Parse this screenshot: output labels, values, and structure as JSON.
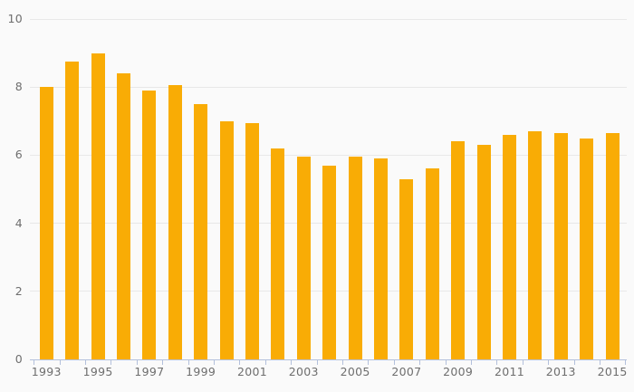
{
  "chart_data": {
    "type": "bar",
    "title": "",
    "xlabel": "",
    "ylabel": "",
    "x": [
      1993,
      1994,
      1995,
      1996,
      1997,
      1998,
      1999,
      2000,
      2001,
      2002,
      2003,
      2004,
      2005,
      2006,
      2007,
      2008,
      2009,
      2010,
      2011,
      2012,
      2013,
      2014,
      2015
    ],
    "values": [
      8.0,
      8.75,
      9.0,
      8.4,
      7.9,
      8.05,
      7.5,
      7.0,
      6.95,
      6.2,
      5.95,
      5.7,
      5.95,
      5.9,
      5.3,
      5.6,
      6.4,
      6.3,
      6.6,
      6.7,
      6.65,
      6.5,
      6.65
    ],
    "x_tick_labels": [
      "1993",
      "1995",
      "1997",
      "1999",
      "2001",
      "2003",
      "2005",
      "2007",
      "2009",
      "2011",
      "2013",
      "2015"
    ],
    "y_ticks": [
      0,
      2,
      4,
      6,
      8,
      10
    ],
    "ylim": [
      0,
      10
    ],
    "grid": true,
    "legend": false,
    "colors": {
      "bar": "#F9AC05",
      "gridline": "#E8E8E8",
      "axis_line": "#B3C0DC",
      "tick": "#B3C0DC",
      "label_text": "#6E6E6E",
      "background": "#FAFAFA"
    }
  }
}
